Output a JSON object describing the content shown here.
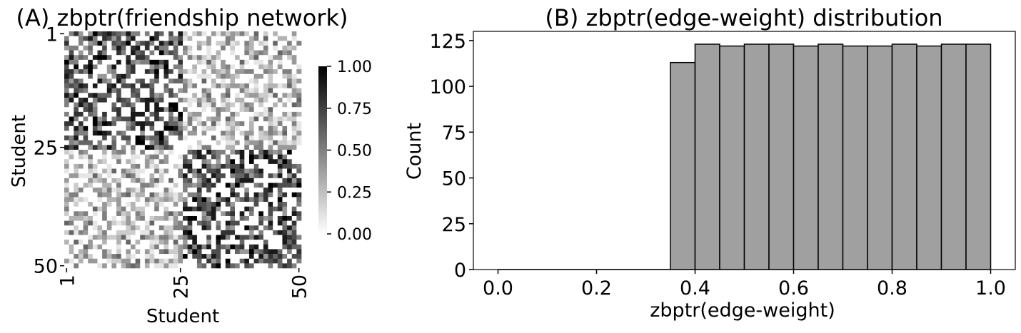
{
  "chart_data": [
    {
      "type": "heatmap",
      "title": "(A) zbptr(friendship network)",
      "xlabel": "Student",
      "ylabel": "Student",
      "n": 50,
      "x_ticks": [
        "1",
        "25",
        "50"
      ],
      "y_ticks": [
        "1",
        "25",
        "50"
      ],
      "colorbar": {
        "range": [
          0,
          1
        ],
        "ticks": [
          "1.00",
          "0.75",
          "0.50",
          "0.25",
          "0.00"
        ],
        "tick_values": [
          1.0,
          0.75,
          0.5,
          0.25,
          0.0
        ]
      },
      "colormap": "greys",
      "groups": [
        [
          1,
          25
        ],
        [
          26,
          50
        ]
      ],
      "within_group_weight_range": [
        0.4,
        1.0
      ],
      "between_group_weight_range": [
        0.0,
        0.6
      ],
      "diagonal_value": 0.0,
      "seed": 7
    },
    {
      "type": "bar",
      "title": "(B) zbptr(edge-weight) distribution",
      "xlabel": "zbptr(edge-weight)",
      "ylabel": "Count",
      "bin_edges": [
        0.35,
        0.4,
        0.45,
        0.5,
        0.55,
        0.6,
        0.65,
        0.7,
        0.75,
        0.8,
        0.85,
        0.9,
        0.95,
        1.0
      ],
      "values": [
        113,
        123,
        122,
        123,
        123,
        122,
        123,
        122,
        122,
        123,
        122,
        123,
        123
      ],
      "xlim": [
        -0.05,
        1.05
      ],
      "ylim": [
        0,
        130
      ],
      "x_ticks": [
        "0.0",
        "0.2",
        "0.4",
        "0.6",
        "0.8",
        "1.0"
      ],
      "x_tick_values": [
        0.0,
        0.2,
        0.4,
        0.6,
        0.8,
        1.0
      ],
      "y_ticks": [
        "0",
        "25",
        "50",
        "75",
        "100",
        "125"
      ],
      "y_tick_values": [
        0,
        25,
        50,
        75,
        100,
        125
      ],
      "bar_color": "#a0a0a0",
      "edge_color": "#000000"
    }
  ]
}
